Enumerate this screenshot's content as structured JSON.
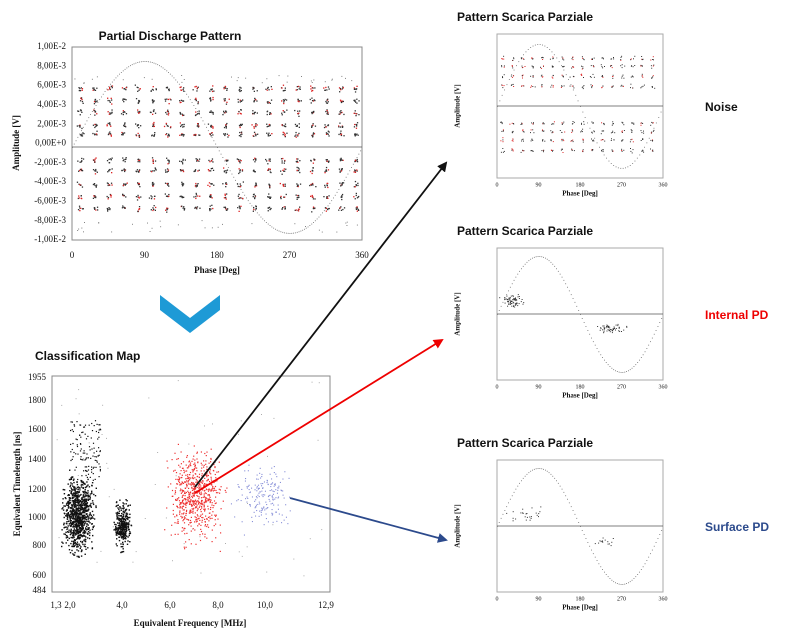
{
  "pattern": {
    "title": "Partial Discharge Pattern",
    "ylabel": "Amplitude [V]",
    "xlabel": "Phase [Deg]",
    "yticks": [
      "1,00E-2",
      "8,00E-3",
      "6,00E-3",
      "4,00E-3",
      "2,00E-3",
      "0,00E+0",
      "-2,00E-3",
      "-4,00E-3",
      "-6,00E-3",
      "-8,00E-3",
      "-1,00E-2"
    ],
    "xticks": [
      0,
      90,
      180,
      270,
      360
    ]
  },
  "map": {
    "title": "Classification Map",
    "ylabel": "Equivalent Timelength [ns]",
    "xlabel": "Equivalent Frequency [MHz]",
    "yticks": [
      1955,
      1800,
      1600,
      1400,
      1200,
      1000,
      800,
      600,
      484
    ],
    "xticks": [
      "1,3",
      "2,0",
      "4,0",
      "6,0",
      "8,0",
      "10,0",
      "12,9"
    ]
  },
  "results": [
    {
      "title": "Pattern Scarica Parziale",
      "ylabel": "Amplitude [V]",
      "xlabel": "Phase [Deg]",
      "xticks": [
        0,
        90,
        180,
        270,
        360
      ],
      "label": "Noise"
    },
    {
      "title": "Pattern Scarica Parziale",
      "ylabel": "Amplitude [V]",
      "xlabel": "Phase [Deg]",
      "xticks": [
        0,
        90,
        180,
        270,
        360
      ],
      "label": "Internal PD"
    },
    {
      "title": "Pattern Scarica Parziale",
      "ylabel": "Amplitude [V]",
      "xlabel": "Phase [Deg]",
      "xticks": [
        0,
        90,
        180,
        270,
        360
      ],
      "label": "Surface PD"
    }
  ]
}
